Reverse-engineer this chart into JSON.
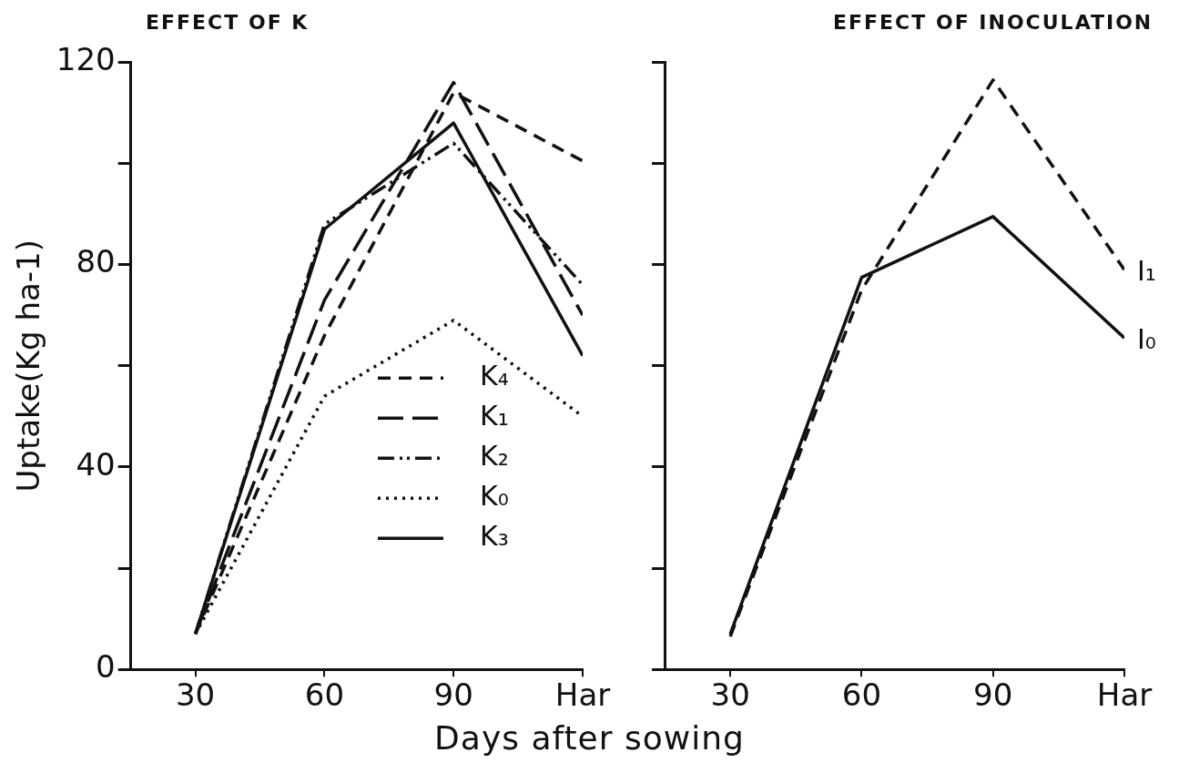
{
  "chart_data": [
    {
      "type": "line",
      "title": "EFFECT OF K",
      "xlabel": "Days after sowing",
      "ylabel": "Uptake(Kg ha-1)",
      "categories": [
        "30",
        "60",
        "90",
        "Har"
      ],
      "series": [
        {
          "name": "K₄",
          "color": "#111111",
          "line_style": "dashed",
          "values": [
            7,
            66,
            114,
            100.5
          ]
        },
        {
          "name": "K₁",
          "color": "#111111",
          "line_style": "longdash",
          "values": [
            7,
            73,
            116,
            70
          ]
        },
        {
          "name": "K₂",
          "color": "#111111",
          "line_style": "dashdotdot",
          "values": [
            7,
            88,
            104,
            76
          ]
        },
        {
          "name": "K₀",
          "color": "#111111",
          "line_style": "dotted",
          "values": [
            7,
            54,
            69,
            50
          ]
        },
        {
          "name": "K₃",
          "color": "#111111",
          "line_style": "solid",
          "values": [
            7,
            87,
            108,
            62
          ]
        }
      ],
      "ylim": [
        0,
        120
      ],
      "yticks": [
        0,
        {
          "value": 20,
          "label": null
        },
        40,
        {
          "value": 60,
          "label": null
        },
        80,
        {
          "value": 100,
          "label": null
        },
        120
      ],
      "legend": "bottom right",
      "marker": "none",
      "grid": false
    },
    {
      "type": "line",
      "title": "EFFECT OF INOCULATION",
      "categories": [
        "30",
        "60",
        "90",
        "Har"
      ],
      "series": [
        {
          "name": "I₁",
          "color": "#111111",
          "line_style": "dashed",
          "values": [
            6.5,
            75,
            116.5,
            79
          ]
        },
        {
          "name": "I₀",
          "color": "#111111",
          "line_style": "solid",
          "values": [
            7,
            77.5,
            89.5,
            65.5
          ]
        }
      ],
      "ylim": [
        0,
        120
      ],
      "yticks": [
        {
          "value": 0,
          "label": null
        },
        {
          "value": 20,
          "label": null
        },
        {
          "value": 40,
          "label": null
        },
        {
          "value": 60,
          "label": null
        },
        {
          "value": 80,
          "label": null
        },
        {
          "value": 100,
          "label": null
        },
        {
          "value": 120,
          "label": null
        }
      ],
      "tick_labels": "x",
      "legend": false,
      "marker": "none",
      "grid": false
    }
  ]
}
